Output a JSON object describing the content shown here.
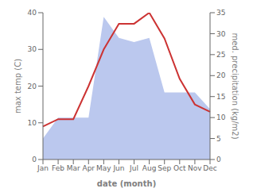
{
  "chart_data": {
    "type": "line",
    "categories": [
      "Jan",
      "Feb",
      "Mar",
      "Apr",
      "May",
      "Jun",
      "Jul",
      "Aug",
      "Sep",
      "Oct",
      "Nov",
      "Dec"
    ],
    "series": [
      {
        "type": "area",
        "color": "#bbc8ee",
        "values": [
          5,
          10,
          10,
          10,
          34,
          29,
          28,
          29,
          16,
          16,
          16,
          12
        ],
        "axis": "y2"
      },
      {
        "type": "line",
        "color": "#cc3333",
        "values": [
          9,
          11,
          11,
          20,
          30,
          37,
          37,
          40,
          33,
          22,
          15,
          13
        ]
      }
    ],
    "xlabel": "date (month)",
    "ylabel": "max temp (C)",
    "y2label": "med. precipitation (kg/m2)",
    "ylim": [
      0,
      40
    ],
    "yticks": [
      0,
      10,
      20,
      30,
      40
    ],
    "y2lim": [
      0,
      35
    ],
    "y2ticks": [
      0,
      5,
      10,
      15,
      20,
      25,
      30,
      35
    ],
    "grid": false
  }
}
